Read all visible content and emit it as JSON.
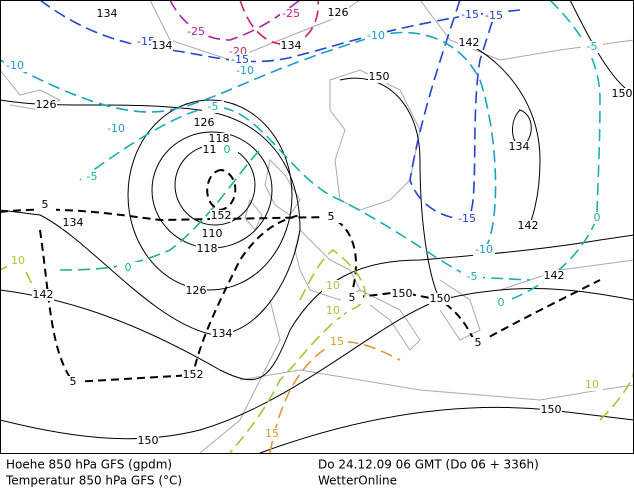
{
  "contour_labels": [
    "134",
    "-25",
    "-25",
    "126",
    "-15",
    "-15",
    "-15",
    "134",
    "-20",
    "134",
    "-15",
    "-10",
    "142",
    "-5",
    "-10",
    "-10",
    "150",
    "150",
    "126",
    "-5",
    "-10",
    "126",
    "118",
    "110",
    "0",
    "-5",
    "134",
    "5",
    "152",
    "5",
    "110",
    "134",
    "-15",
    "142",
    "118",
    "0",
    "-10",
    "10",
    "0",
    "-5",
    "142",
    "126",
    "10",
    "150",
    "5",
    "150",
    "0",
    "142",
    "10",
    "134",
    "15",
    "5",
    "152",
    "5",
    "10",
    "150",
    "15",
    "150"
  ],
  "footer": {
    "height_label": "Hoehe 850 hPa GFS (gpdm)",
    "temperature_label": "Temperatur 850 hPa GFS (°C)",
    "valid_time": "Do 24.12.09 06 GMT (Do 06 + 336h)",
    "source": "WetterOnline"
  }
}
